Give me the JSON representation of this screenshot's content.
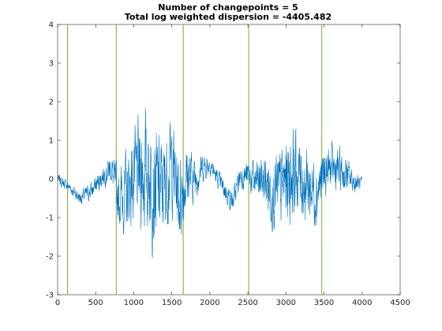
{
  "chart_data": {
    "type": "line",
    "title_lines": [
      "Number of changepoints = 5",
      "Total log weighted dispersion = -4405.482"
    ],
    "xlim": [
      0,
      4500
    ],
    "ylim": [
      -3,
      4
    ],
    "x_ticks": [
      0,
      500,
      1000,
      1500,
      2000,
      2500,
      3000,
      3500,
      4000,
      4500
    ],
    "y_ticks": [
      -3,
      -2,
      -1,
      0,
      1,
      2,
      3,
      4
    ],
    "grid": false,
    "changepoints": [
      130,
      770,
      1650,
      2510,
      3470
    ],
    "series": [
      {
        "color": "#0072BD",
        "x_start": 1,
        "x_end": 4000,
        "envelope_x": [
          0,
          150,
          300,
          450,
          600,
          700,
          800,
          900,
          1000,
          1100,
          1200,
          1300,
          1400,
          1500,
          1600,
          1700,
          1800,
          1900,
          2000,
          2100,
          2200,
          2300,
          2400,
          2500,
          2600,
          2700,
          2800,
          2900,
          3000,
          3100,
          3200,
          3300,
          3400,
          3500,
          3600,
          3700,
          3800,
          3900,
          4000
        ],
        "envelope_center": [
          0.0,
          -0.2,
          -0.5,
          -0.3,
          0.1,
          0.3,
          -0.5,
          -0.4,
          0.0,
          0.2,
          0.2,
          -0.3,
          -0.2,
          0.4,
          -0.5,
          0.1,
          0.0,
          0.3,
          0.4,
          0.0,
          -0.3,
          -0.6,
          0.1,
          0.1,
          -0.1,
          0.0,
          -0.3,
          -0.4,
          0.0,
          0.2,
          0.0,
          -0.2,
          -0.3,
          0.1,
          0.3,
          0.2,
          0.1,
          -0.1,
          -0.1
        ],
        "envelope_amplitude": [
          0.15,
          0.15,
          0.2,
          0.25,
          0.3,
          0.4,
          0.8,
          1.1,
          1.2,
          1.6,
          1.6,
          1.7,
          1.3,
          1.3,
          1.3,
          0.9,
          0.6,
          0.4,
          0.3,
          0.25,
          0.3,
          0.3,
          0.35,
          0.4,
          0.6,
          0.7,
          0.9,
          1.1,
          1.3,
          1.2,
          1.1,
          1.0,
          0.9,
          0.7,
          0.6,
          0.6,
          0.5,
          0.3,
          0.15
        ]
      }
    ]
  }
}
